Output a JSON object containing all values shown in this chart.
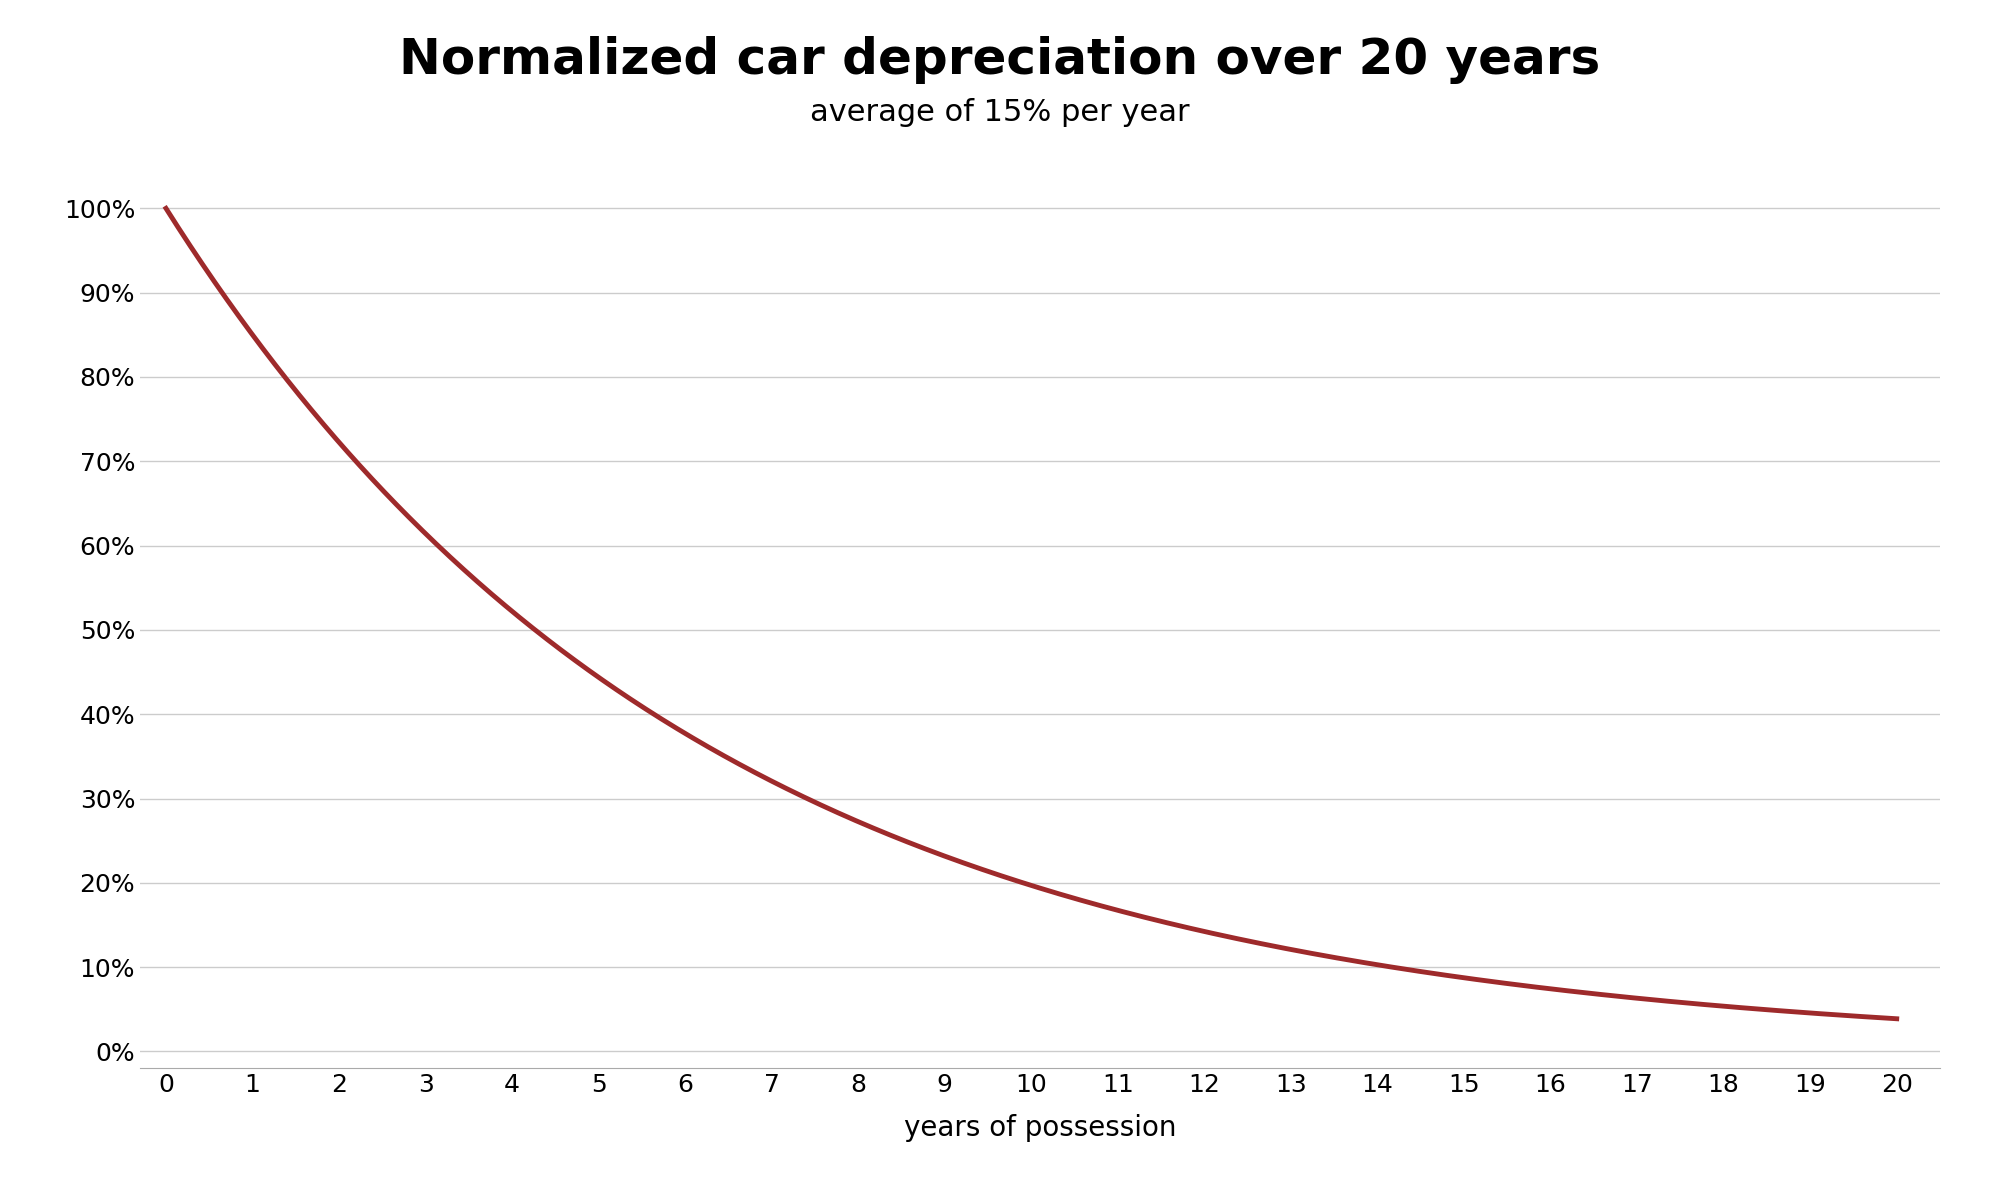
{
  "title": "Normalized car depreciation over 20 years",
  "subtitle": "average of 15% per year",
  "xlabel": "years of possession",
  "depreciation_rate": 0.15,
  "x_start": 0,
  "x_end": 20,
  "y_ticks": [
    0,
    10,
    20,
    30,
    40,
    50,
    60,
    70,
    80,
    90,
    100
  ],
  "x_ticks": [
    0,
    1,
    2,
    3,
    4,
    5,
    6,
    7,
    8,
    9,
    10,
    11,
    12,
    13,
    14,
    15,
    16,
    17,
    18,
    19,
    20
  ],
  "line_color": "#9e2a2b",
  "line_width": 3.5,
  "background_color": "#ffffff",
  "title_fontsize": 36,
  "subtitle_fontsize": 22,
  "xlabel_fontsize": 20,
  "tick_fontsize": 18,
  "grid_color": "#cccccc",
  "ylim": [
    -2,
    105
  ],
  "xlim": [
    -0.3,
    20.5
  ],
  "border_color": "#aaaaaa"
}
